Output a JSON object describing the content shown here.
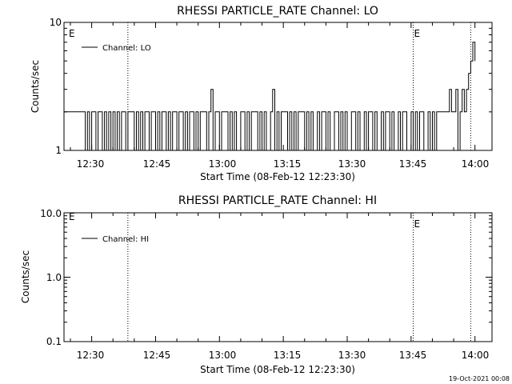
{
  "chart_data": [
    {
      "type": "line",
      "title": "RHESSI PARTICLE_RATE Channel: LO",
      "xlabel": "Start Time (08-Feb-12 12:23:30)",
      "ylabel": "Counts/sec",
      "yscale": "log",
      "ylim": [
        1,
        10
      ],
      "xlim": [
        "12:23:30",
        "14:04:00"
      ],
      "xticks": [
        "12:30",
        "12:45",
        "13:00",
        "13:15",
        "13:30",
        "13:45",
        "14:00"
      ],
      "yticks": [
        "1",
        "10"
      ],
      "event_markers": [
        {
          "time": "12:38:30",
          "label": ""
        },
        {
          "time": "13:45:30",
          "label": "E"
        },
        {
          "time": "13:59:00",
          "label": ""
        }
      ],
      "corner_label": "E",
      "legend": {
        "entries": [
          "Channel: LO"
        ],
        "position": "top-left"
      },
      "series": [
        {
          "name": "Channel: LO",
          "x": [
            "12:23:30",
            "12:28:00",
            "12:28:30",
            "12:29:00",
            "12:29:30",
            "12:30:00",
            "12:31:00",
            "12:31:30",
            "12:32:00",
            "12:32:30",
            "12:33:00",
            "12:33:30",
            "12:34:00",
            "12:34:30",
            "12:35:00",
            "12:35:30",
            "12:36:00",
            "12:36:30",
            "12:37:00",
            "12:37:30",
            "12:38:00",
            "12:38:30",
            "12:39:00",
            "12:40:00",
            "12:40:30",
            "12:41:00",
            "12:41:30",
            "12:42:00",
            "12:42:30",
            "12:43:00",
            "12:43:30",
            "12:44:00",
            "12:45:00",
            "12:45:30",
            "12:46:00",
            "12:46:30",
            "12:47:00",
            "12:47:30",
            "12:48:00",
            "12:48:30",
            "12:49:00",
            "12:50:00",
            "12:50:30",
            "12:51:00",
            "12:51:30",
            "12:52:00",
            "12:52:30",
            "12:53:00",
            "12:54:00",
            "12:54:30",
            "12:55:00",
            "12:55:30",
            "12:56:00",
            "12:57:00",
            "12:57:30",
            "12:58:00",
            "12:58:30",
            "12:59:00",
            "13:00:00",
            "13:00:30",
            "13:01:00",
            "13:02:00",
            "13:02:30",
            "13:03:00",
            "13:03:30",
            "13:04:00",
            "13:05:00",
            "13:05:30",
            "13:06:00",
            "13:06:30",
            "13:07:00",
            "13:07:30",
            "13:08:00",
            "13:09:00",
            "13:09:30",
            "13:10:00",
            "13:10:30",
            "13:11:00",
            "13:12:00",
            "13:12:30",
            "13:13:00",
            "13:13:30",
            "13:14:00",
            "13:14:30",
            "13:15:00",
            "13:16:00",
            "13:16:30",
            "13:17:00",
            "13:17:30",
            "13:18:00",
            "13:18:30",
            "13:19:00",
            "13:20:00",
            "13:20:30",
            "13:21:00",
            "13:21:30",
            "13:22:00",
            "13:23:00",
            "13:23:30",
            "13:24:00",
            "13:24:30",
            "13:25:00",
            "13:25:30",
            "13:26:00",
            "13:27:00",
            "13:27:30",
            "13:28:00",
            "13:28:30",
            "13:29:00",
            "13:29:30",
            "13:30:00",
            "13:31:00",
            "13:31:30",
            "13:32:00",
            "13:32:30",
            "13:33:00",
            "13:34:00",
            "13:34:30",
            "13:35:00",
            "13:35:30",
            "13:36:00",
            "13:36:30",
            "13:37:00",
            "13:38:00",
            "13:38:30",
            "13:39:00",
            "13:39:30",
            "13:40:00",
            "13:40:30",
            "13:41:00",
            "13:42:00",
            "13:42:30",
            "13:43:00",
            "13:43:30",
            "13:44:00",
            "13:45:00",
            "13:45:30",
            "13:46:00",
            "13:46:30",
            "13:47:00",
            "13:47:30",
            "13:48:00",
            "13:49:00",
            "13:49:30",
            "13:50:00",
            "13:50:30",
            "13:51:00",
            "13:51:30",
            "13:52:00",
            "13:53:00",
            "13:53:30",
            "13:54:00",
            "13:54:30",
            "13:55:00",
            "13:55:30",
            "13:56:00",
            "13:56:30",
            "13:57:00",
            "13:57:30",
            "13:58:00",
            "13:58:30",
            "13:59:00",
            "13:59:30",
            "14:00:00"
          ],
          "y": [
            2,
            2,
            1,
            2,
            1,
            2,
            1,
            2,
            2,
            1,
            2,
            1,
            2,
            1,
            2,
            1,
            2,
            1,
            2,
            2,
            1,
            2,
            2,
            1,
            2,
            1,
            2,
            1,
            2,
            2,
            1,
            2,
            1,
            2,
            1,
            2,
            2,
            1,
            2,
            1,
            2,
            1,
            2,
            2,
            1,
            2,
            1,
            2,
            1,
            2,
            1,
            2,
            2,
            1,
            2,
            3,
            1,
            2,
            1,
            2,
            2,
            1,
            2,
            1,
            2,
            1,
            2,
            2,
            1,
            2,
            1,
            2,
            2,
            1,
            2,
            1,
            2,
            1,
            2,
            3,
            1,
            2,
            1,
            2,
            2,
            1,
            2,
            1,
            2,
            1,
            2,
            2,
            1,
            2,
            1,
            2,
            1,
            2,
            1,
            2,
            2,
            1,
            2,
            1,
            2,
            2,
            1,
            2,
            1,
            2,
            1,
            2,
            2,
            1,
            2,
            1,
            2,
            1,
            2,
            2,
            1,
            2,
            1,
            2,
            1,
            2,
            2,
            1,
            2,
            1,
            2,
            1,
            2,
            2,
            1,
            2,
            1,
            2,
            1,
            2,
            2,
            1,
            2,
            1,
            2,
            1,
            2,
            2,
            2,
            2,
            2,
            3,
            2,
            2,
            3,
            1,
            2,
            3,
            2,
            3,
            4,
            5,
            7,
            5
          ]
        }
      ]
    },
    {
      "type": "line",
      "title": "RHESSI PARTICLE_RATE Channel: HI",
      "xlabel": "Start Time (08-Feb-12 12:23:30)",
      "ylabel": "Counts/sec",
      "yscale": "log",
      "ylim": [
        0.1,
        10
      ],
      "xlim": [
        "12:23:30",
        "14:04:00"
      ],
      "xticks": [
        "12:30",
        "12:45",
        "13:00",
        "13:15",
        "13:30",
        "13:45",
        "14:00"
      ],
      "yticks": [
        "0.1",
        "1.0",
        "10.0"
      ],
      "event_markers": [
        {
          "time": "12:38:30",
          "label": ""
        },
        {
          "time": "13:45:30",
          "label": "E"
        },
        {
          "time": "13:59:00",
          "label": ""
        }
      ],
      "corner_label": "E",
      "legend": {
        "entries": [
          "Channel: HI"
        ],
        "position": "top-left"
      },
      "series": [
        {
          "name": "Channel: HI",
          "x": [],
          "y": []
        }
      ]
    }
  ],
  "footer": {
    "timestamp": "19-Oct-2021 00:08"
  }
}
